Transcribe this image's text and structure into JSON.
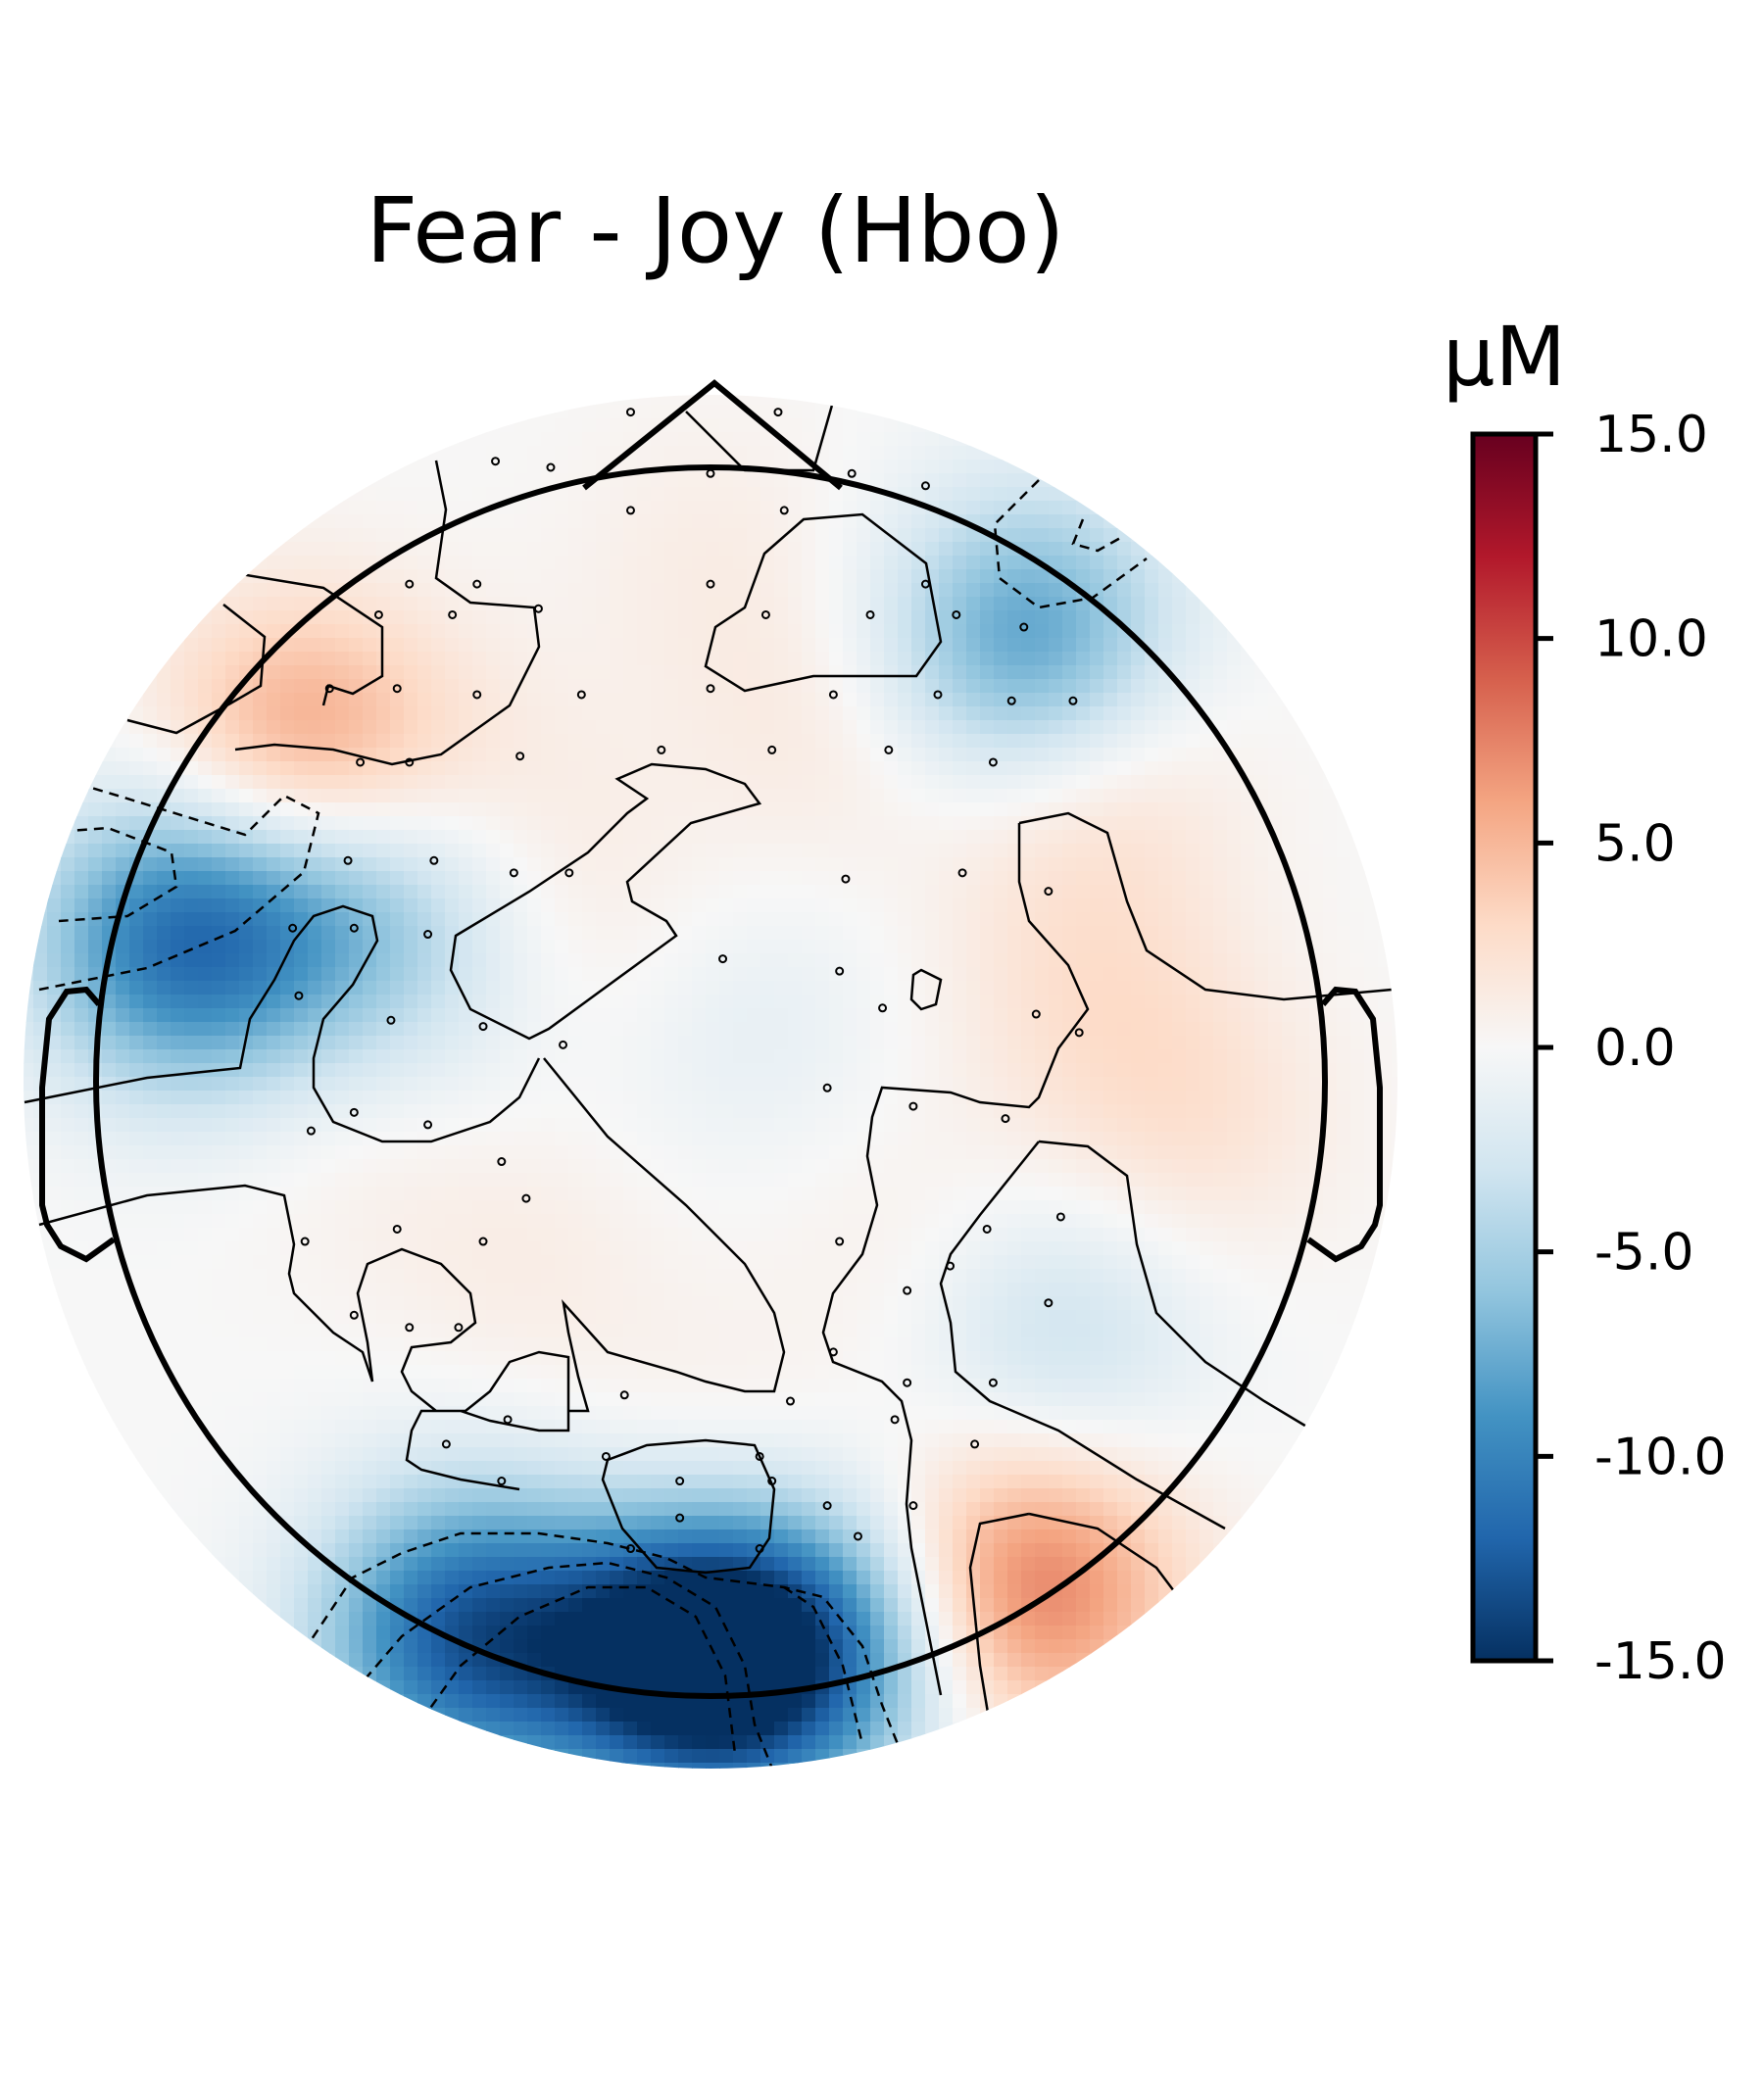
{
  "chart_data": {
    "type": "heatmap",
    "subtype": "topographic-map",
    "title": "Fear - Joy (Hbo)",
    "colorbar": {
      "unit": "μM",
      "range": [
        -15.0,
        15.0
      ],
      "ticks": [
        15.0,
        10.0,
        5.0,
        0.0,
        -5.0,
        -10.0,
        -15.0
      ],
      "tick_labels": [
        "15.0",
        "10.0",
        "5.0",
        "0.0",
        "-5.0",
        "-10.0",
        "-15.0"
      ],
      "colormap": "RdBu_r"
    },
    "grid": false,
    "legend": "colorbar-right",
    "blobs": [
      {
        "x": -0.66,
        "y": 0.53,
        "value": 7
      },
      {
        "x": -0.86,
        "y": 0.23,
        "value": -11
      },
      {
        "x": -0.58,
        "y": 0.29,
        "value": -6
      },
      {
        "x": 0.52,
        "y": 0.71,
        "value": -9
      },
      {
        "x": 0.61,
        "y": 0.51,
        "value": 3
      },
      {
        "x": 0.0,
        "y": 0.86,
        "value": 1
      },
      {
        "x": 0.2,
        "y": 0.58,
        "value": 1.5
      },
      {
        "x": -0.33,
        "y": 0.45,
        "value": 1
      },
      {
        "x": -0.16,
        "y": 0.22,
        "value": 1
      },
      {
        "x": 0.62,
        "y": 0.15,
        "value": 2
      },
      {
        "x": 0.78,
        "y": -0.07,
        "value": 2
      },
      {
        "x": -0.55,
        "y": -0.07,
        "value": 1
      },
      {
        "x": -0.3,
        "y": -0.3,
        "value": 1
      },
      {
        "x": 0.34,
        "y": -0.29,
        "value": 1
      },
      {
        "x": 0.56,
        "y": -0.42,
        "value": -3.5
      },
      {
        "x": 0.0,
        "y": -0.69,
        "value": 2
      },
      {
        "x": 0.52,
        "y": -0.82,
        "value": 8
      },
      {
        "x": -0.03,
        "y": -0.93,
        "value": -17
      },
      {
        "x": -0.4,
        "y": -0.9,
        "value": -12
      },
      {
        "x": 0.18,
        "y": -0.92,
        "value": -8
      },
      {
        "x": 0.05,
        "y": 0.1,
        "value": -1.5
      },
      {
        "x": -0.45,
        "y": 0.07,
        "value": -1
      }
    ],
    "sensors": [
      [
        -0.13,
        1.09
      ],
      [
        0.11,
        1.09
      ],
      [
        -0.35,
        1.01
      ],
      [
        -0.26,
        1.0
      ],
      [
        0.0,
        0.99
      ],
      [
        0.23,
        0.99
      ],
      [
        0.35,
        0.97
      ],
      [
        -0.13,
        0.93
      ],
      [
        0.12,
        0.93
      ],
      [
        -0.49,
        0.81
      ],
      [
        -0.38,
        0.81
      ],
      [
        0.0,
        0.81
      ],
      [
        0.35,
        0.81
      ],
      [
        -0.54,
        0.76
      ],
      [
        -0.42,
        0.76
      ],
      [
        -0.28,
        0.77
      ],
      [
        0.09,
        0.76
      ],
      [
        0.26,
        0.76
      ],
      [
        0.4,
        0.76
      ],
      [
        0.51,
        0.74
      ],
      [
        -0.62,
        0.64
      ],
      [
        -0.51,
        0.64
      ],
      [
        -0.38,
        0.63
      ],
      [
        -0.21,
        0.63
      ],
      [
        0.0,
        0.64
      ],
      [
        0.2,
        0.63
      ],
      [
        0.37,
        0.63
      ],
      [
        0.49,
        0.62
      ],
      [
        0.59,
        0.62
      ],
      [
        -0.57,
        0.52
      ],
      [
        -0.49,
        0.52
      ],
      [
        -0.31,
        0.53
      ],
      [
        -0.08,
        0.54
      ],
      [
        0.1,
        0.54
      ],
      [
        0.29,
        0.54
      ],
      [
        0.46,
        0.52
      ],
      [
        -0.59,
        0.36
      ],
      [
        -0.45,
        0.36
      ],
      [
        -0.32,
        0.34
      ],
      [
        -0.23,
        0.34
      ],
      [
        0.22,
        0.33
      ],
      [
        0.41,
        0.34
      ],
      [
        0.55,
        0.31
      ],
      [
        -0.68,
        0.25
      ],
      [
        -0.58,
        0.25
      ],
      [
        -0.46,
        0.24
      ],
      [
        0.02,
        0.2
      ],
      [
        0.21,
        0.18
      ],
      [
        0.28,
        0.12
      ],
      [
        0.53,
        0.11
      ],
      [
        0.6,
        0.08
      ],
      [
        -0.67,
        0.14
      ],
      [
        -0.52,
        0.1
      ],
      [
        -0.37,
        0.09
      ],
      [
        -0.24,
        0.06
      ],
      [
        0.19,
        -0.01
      ],
      [
        0.33,
        -0.04
      ],
      [
        0.48,
        -0.06
      ],
      [
        -0.58,
        -0.05
      ],
      [
        -0.46,
        -0.07
      ],
      [
        -0.65,
        -0.08
      ],
      [
        -0.34,
        -0.13
      ],
      [
        -0.3,
        -0.19
      ],
      [
        0.21,
        -0.26
      ],
      [
        0.45,
        -0.24
      ],
      [
        0.57,
        -0.22
      ],
      [
        -0.66,
        -0.26
      ],
      [
        -0.51,
        -0.24
      ],
      [
        -0.37,
        -0.26
      ],
      [
        0.39,
        -0.3
      ],
      [
        0.32,
        -0.34
      ],
      [
        0.55,
        -0.36
      ],
      [
        -0.58,
        -0.38
      ],
      [
        -0.49,
        -0.4
      ],
      [
        -0.41,
        -0.4
      ],
      [
        0.2,
        -0.44
      ],
      [
        0.32,
        -0.49
      ],
      [
        0.46,
        -0.49
      ],
      [
        -0.14,
        -0.51
      ],
      [
        0.13,
        -0.52
      ],
      [
        0.3,
        -0.55
      ],
      [
        -0.33,
        -0.55
      ],
      [
        0.43,
        -0.59
      ],
      [
        -0.43,
        -0.59
      ],
      [
        0.08,
        -0.61
      ],
      [
        -0.17,
        -0.61
      ],
      [
        -0.34,
        -0.65
      ],
      [
        -0.05,
        -0.65
      ],
      [
        0.1,
        -0.65
      ],
      [
        0.33,
        -0.69
      ],
      [
        0.19,
        -0.69
      ],
      [
        0.24,
        -0.74
      ],
      [
        -0.13,
        -0.76
      ],
      [
        0.08,
        -0.76
      ],
      [
        -0.05,
        -0.71
      ]
    ]
  }
}
